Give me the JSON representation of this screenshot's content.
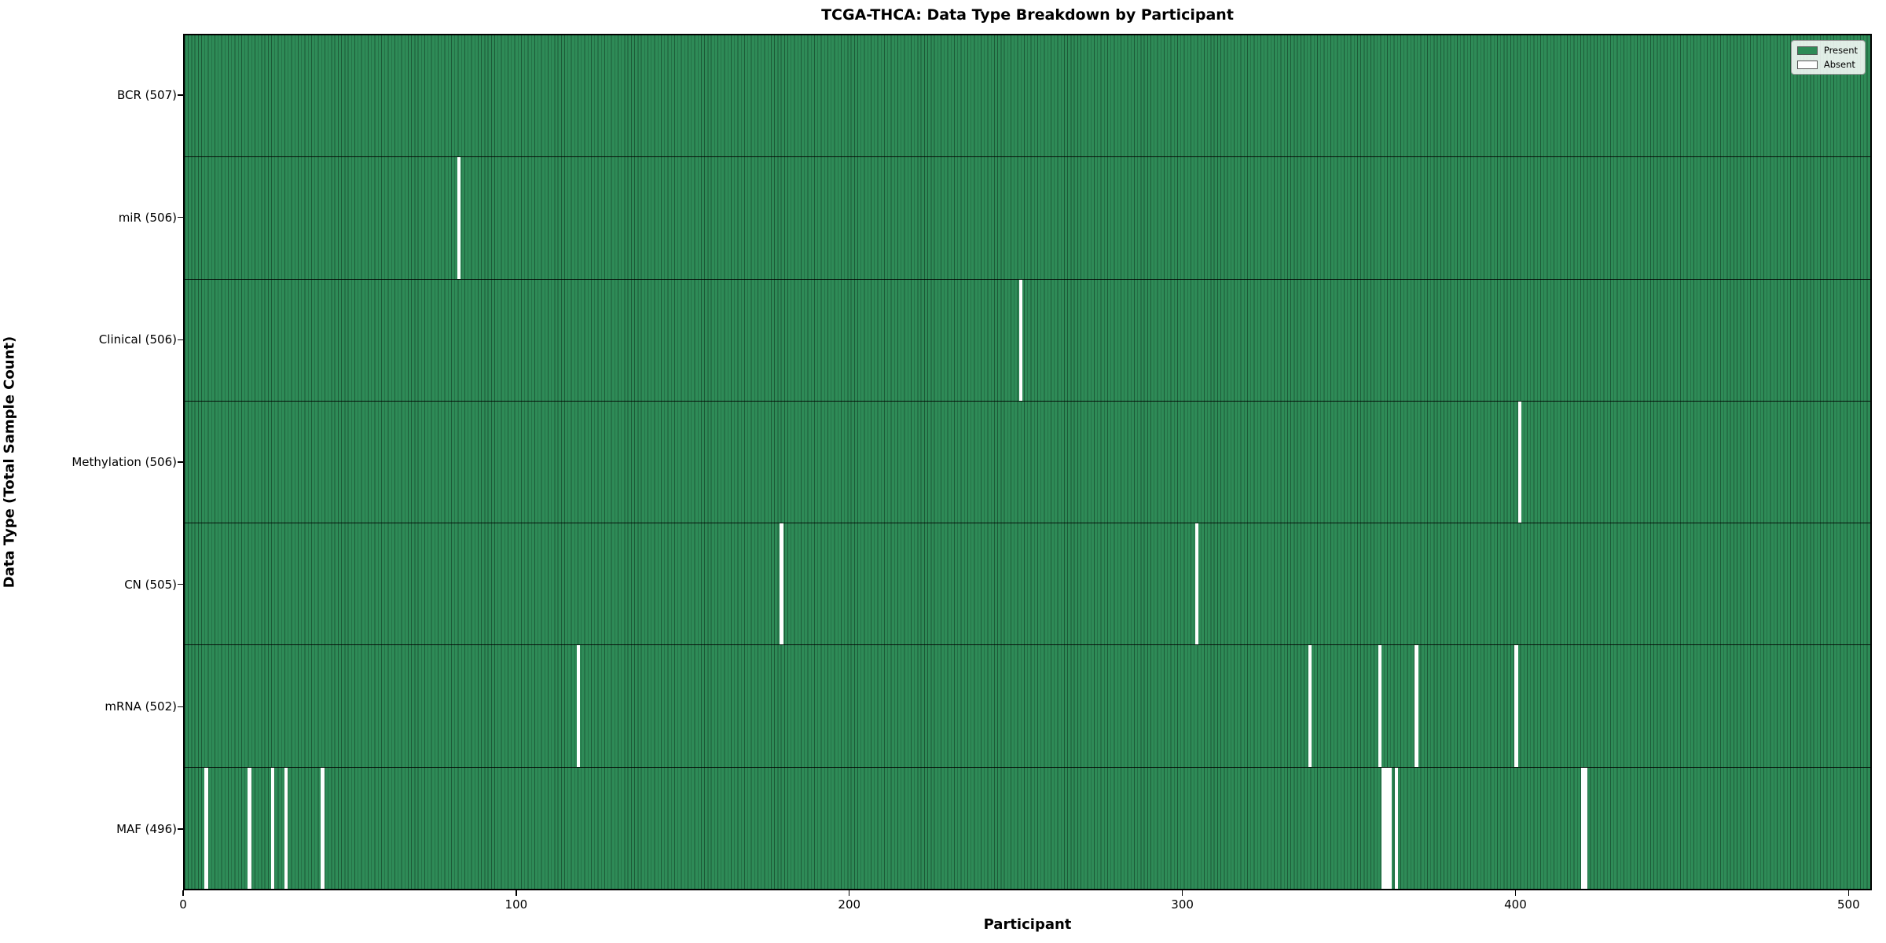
{
  "title": "TCGA-THCA: Data Type Breakdown by Participant",
  "chart_data": {
    "type": "heatmap",
    "title": "TCGA-THCA: Data Type Breakdown by Participant",
    "xlabel": "Participant",
    "ylabel": "Data Type (Total Sample Count)",
    "x_ticks": [
      0,
      100,
      200,
      300,
      400,
      500
    ],
    "x_range": [
      0,
      507
    ],
    "n_participants": 507,
    "legend": [
      {
        "label": "Present",
        "color": "#2e8b57"
      },
      {
        "label": "Absent",
        "color": "#ffffff"
      }
    ],
    "legend_position": "upper right",
    "grid": false,
    "rows": [
      {
        "label": "BCR (507)",
        "name": "BCR",
        "total": 507,
        "absent_participants": []
      },
      {
        "label": "miR (506)",
        "name": "miR",
        "total": 506,
        "absent_participants": [
          82
        ]
      },
      {
        "label": "Clinical (506)",
        "name": "Clinical",
        "total": 506,
        "absent_participants": [
          251
        ]
      },
      {
        "label": "Methylation (506)",
        "name": "Methylation",
        "total": 506,
        "absent_participants": [
          401
        ]
      },
      {
        "label": "CN (505)",
        "name": "CN",
        "total": 505,
        "absent_participants": [
          179,
          304
        ]
      },
      {
        "label": "mRNA (502)",
        "name": "mRNA",
        "total": 502,
        "absent_participants": [
          118,
          338,
          359,
          370,
          400
        ]
      },
      {
        "label": "MAF (496)",
        "name": "MAF",
        "total": 496,
        "absent_participants": [
          6,
          19,
          26,
          30,
          41,
          360,
          361,
          362,
          364,
          420,
          421
        ]
      }
    ],
    "colors": {
      "present": "#2e8b57",
      "absent": "#ffffff",
      "bar_edge": "#1c5a37",
      "spine": "#000000"
    }
  }
}
